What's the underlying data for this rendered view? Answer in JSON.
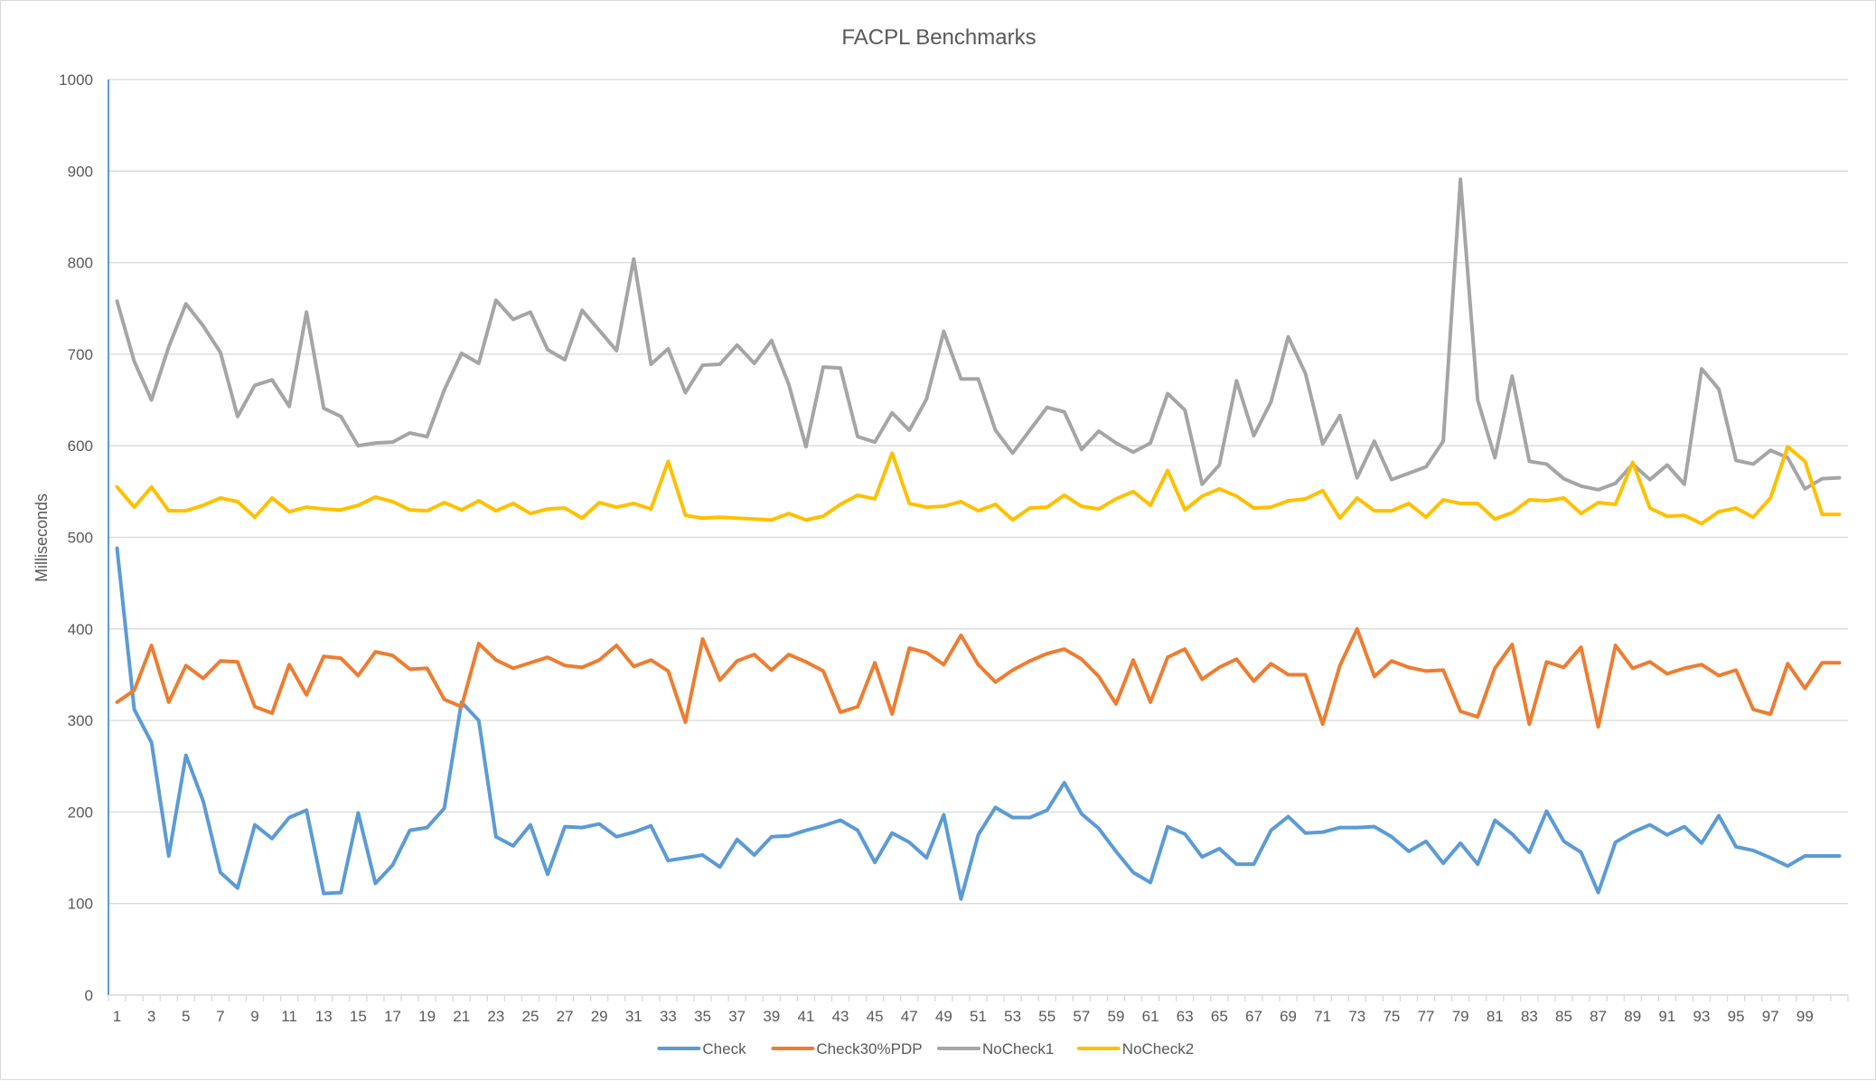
{
  "chart_data": {
    "type": "line",
    "title": "FACPL Benchmarks",
    "xlabel": "",
    "ylabel": "Milliseconds",
    "ylim": [
      0,
      1000
    ],
    "y_ticks": [
      0,
      100,
      200,
      300,
      400,
      500,
      600,
      700,
      800,
      900,
      1000
    ],
    "x": [
      1,
      2,
      3,
      4,
      5,
      6,
      7,
      8,
      9,
      10,
      11,
      12,
      13,
      14,
      15,
      16,
      17,
      18,
      19,
      20,
      21,
      22,
      23,
      24,
      25,
      26,
      27,
      28,
      29,
      30,
      31,
      32,
      33,
      34,
      35,
      36,
      37,
      38,
      39,
      40,
      41,
      42,
      43,
      44,
      45,
      46,
      47,
      48,
      49,
      50,
      51,
      52,
      53,
      54,
      55,
      56,
      57,
      58,
      59,
      60,
      61,
      62,
      63,
      64,
      65,
      66,
      67,
      68,
      69,
      70,
      71,
      72,
      73,
      74,
      75,
      76,
      77,
      78,
      79,
      80,
      81,
      82,
      83,
      84,
      85,
      86,
      87,
      88,
      89,
      90,
      91,
      92,
      93,
      94,
      95,
      96,
      97,
      98,
      99,
      100,
      101
    ],
    "x_tick_labels": [
      1,
      3,
      5,
      7,
      9,
      11,
      13,
      15,
      17,
      19,
      21,
      23,
      25,
      27,
      29,
      31,
      33,
      35,
      37,
      39,
      41,
      43,
      45,
      47,
      49,
      51,
      53,
      55,
      57,
      59,
      61,
      63,
      65,
      67,
      69,
      71,
      73,
      75,
      77,
      79,
      81,
      83,
      85,
      87,
      89,
      91,
      93,
      95,
      97,
      99
    ],
    "grid": true,
    "legend_position": "bottom",
    "series": [
      {
        "name": "Check",
        "color": "#5B9BD5",
        "values": [
          488,
          312,
          276,
          152,
          262,
          212,
          134,
          117,
          186,
          171,
          194,
          202,
          111,
          112,
          199,
          122,
          142,
          180,
          183,
          204,
          320,
          300,
          173,
          163,
          186,
          132,
          184,
          183,
          187,
          173,
          178,
          185,
          147,
          150,
          153,
          140,
          170,
          153,
          173,
          174,
          180,
          185,
          191,
          180,
          145,
          177,
          167,
          150,
          197,
          105,
          175,
          205,
          194,
          194,
          202,
          232,
          198,
          182,
          157,
          134,
          123,
          184,
          176,
          151,
          160,
          143,
          143,
          180,
          195,
          177,
          178,
          183,
          183,
          184,
          173,
          157,
          168,
          144,
          166,
          143,
          191,
          176,
          156,
          201,
          168,
          156,
          112,
          167,
          178,
          186,
          175,
          184,
          166,
          196,
          162,
          158,
          150,
          141,
          152,
          152,
          152
        ]
      },
      {
        "name": "Check30%PDP",
        "color": "#ED7D31",
        "values": [
          320,
          333,
          382,
          320,
          360,
          346,
          365,
          364,
          315,
          308,
          361,
          328,
          370,
          368,
          349,
          375,
          371,
          356,
          357,
          323,
          315,
          384,
          366,
          357,
          363,
          369,
          360,
          358,
          366,
          382,
          359,
          366,
          354,
          298,
          389,
          344,
          365,
          372,
          355,
          372,
          364,
          354,
          309,
          315,
          363,
          307,
          379,
          374,
          361,
          393,
          361,
          342,
          355,
          365,
          373,
          378,
          367,
          348,
          318,
          366,
          320,
          369,
          378,
          345,
          358,
          367,
          343,
          362,
          350,
          350,
          296,
          360,
          400,
          348,
          365,
          358,
          354,
          355,
          310,
          304,
          357,
          383,
          296,
          364,
          358,
          380,
          293,
          382,
          357,
          364,
          351,
          357,
          361,
          349,
          355,
          312,
          307,
          362,
          335,
          363,
          363
        ]
      },
      {
        "name": "NoCheck1",
        "color": "#A5A5A5",
        "values": [
          758,
          692,
          650,
          708,
          755,
          731,
          702,
          632,
          666,
          672,
          643,
          746,
          641,
          632,
          600,
          603,
          604,
          614,
          610,
          661,
          701,
          690,
          759,
          738,
          746,
          705,
          694,
          748,
          726,
          704,
          804,
          689,
          706,
          658,
          688,
          689,
          710,
          690,
          715,
          667,
          599,
          686,
          685,
          610,
          604,
          636,
          617,
          651,
          725,
          673,
          673,
          617,
          592,
          617,
          642,
          637,
          596,
          616,
          603,
          593,
          603,
          657,
          639,
          558,
          579,
          671,
          611,
          648,
          719,
          679,
          602,
          633,
          565,
          605,
          563,
          570,
          577,
          605,
          891,
          650,
          587,
          676,
          583,
          580,
          564,
          556,
          552,
          559,
          580,
          563,
          579,
          558,
          684,
          662,
          584,
          580,
          595,
          587,
          553,
          564,
          565
        ]
      },
      {
        "name": "NoCheck2",
        "color": "#FFC000",
        "values": [
          555,
          533,
          555,
          529,
          529,
          535,
          543,
          539,
          522,
          543,
          528,
          533,
          531,
          530,
          535,
          544,
          539,
          530,
          529,
          538,
          530,
          540,
          529,
          537,
          526,
          531,
          532,
          521,
          538,
          533,
          537,
          531,
          583,
          524,
          521,
          522,
          521,
          520,
          519,
          526,
          519,
          523,
          536,
          546,
          542,
          592,
          537,
          533,
          534,
          539,
          529,
          536,
          519,
          532,
          533,
          546,
          534,
          531,
          542,
          550,
          535,
          573,
          530,
          545,
          553,
          545,
          532,
          533,
          540,
          542,
          551,
          521,
          543,
          529,
          529,
          537,
          522,
          541,
          537,
          537,
          520,
          527,
          541,
          540,
          543,
          526,
          538,
          536,
          582,
          532,
          523,
          524,
          515,
          528,
          532,
          522,
          543,
          599,
          583,
          525,
          525
        ]
      }
    ]
  }
}
